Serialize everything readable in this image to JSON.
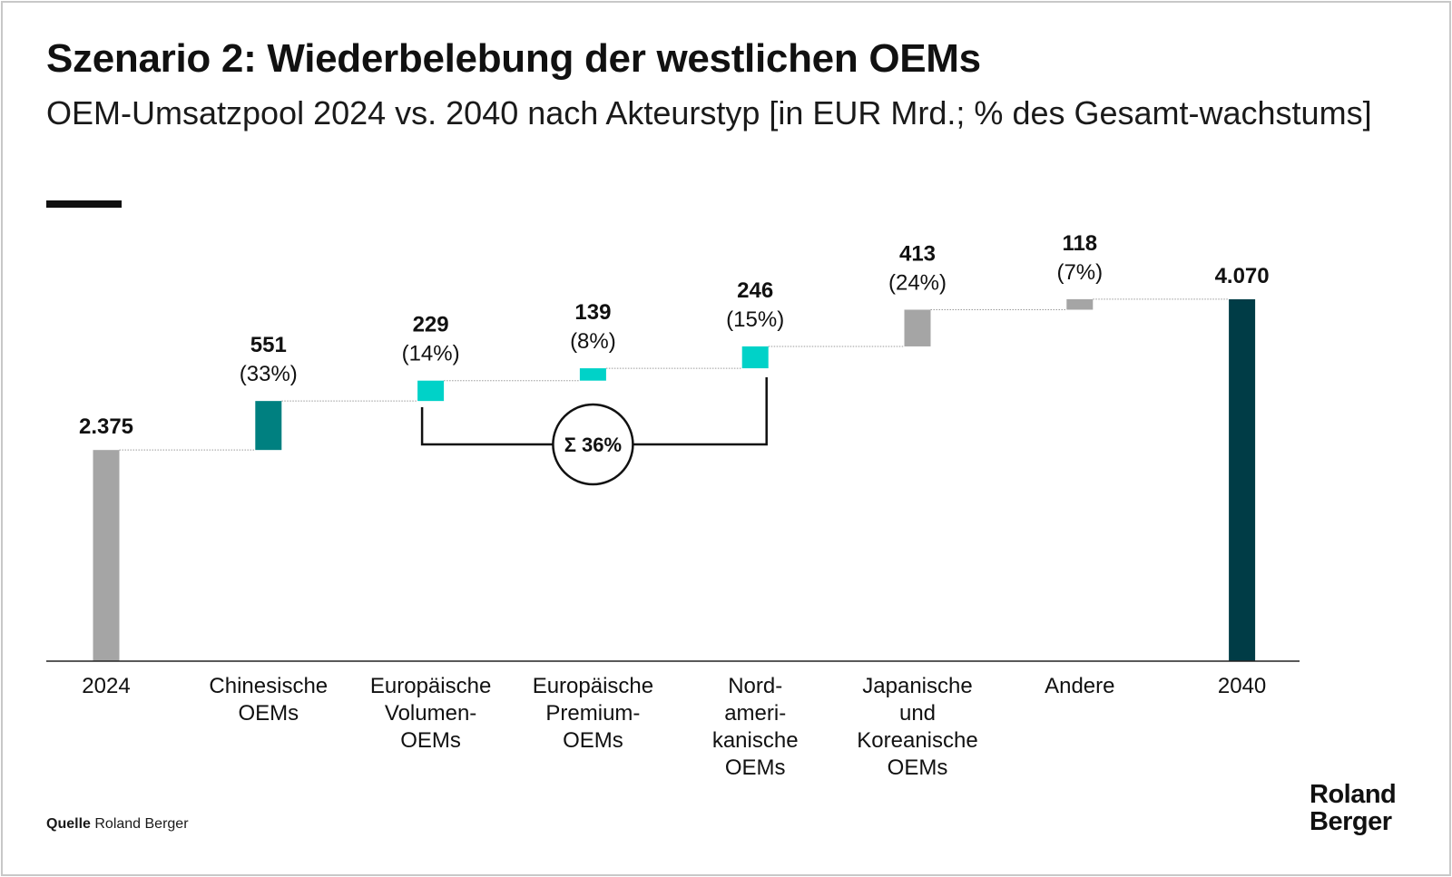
{
  "title": "Szenario 2: Wiederbelebung der westlichen OEMs",
  "subtitle": "OEM-Umsatzpool 2024 vs. 2040 nach Akteurstyp [in EUR Mrd.; % des Gesamt-wachstums]",
  "source": {
    "label": "Quelle",
    "text": "Roland Berger"
  },
  "brand": {
    "line1": "Roland",
    "line2": "Berger"
  },
  "chart_data": {
    "type": "bar",
    "subtype": "waterfall",
    "categories": [
      "2024",
      "Chinesische OEMs",
      "Europäische Volumen-OEMs",
      "Europäische Premium-OEMs",
      "Nord-amerikanische OEMs",
      "Japanische und Koreanische OEMs",
      "Andere",
      "2040"
    ],
    "category_lines": [
      [
        "2024"
      ],
      [
        "Chinesische",
        "OEMs"
      ],
      [
        "Europäische",
        "Volumen-",
        "OEMs"
      ],
      [
        "Europäische",
        "Premium-",
        "OEMs"
      ],
      [
        "Nord-",
        "ameri-",
        "kanische",
        "OEMs"
      ],
      [
        "Japanische",
        "und",
        "Koreanische",
        "OEMs"
      ],
      [
        "Andere"
      ],
      [
        "2040"
      ]
    ],
    "bars": [
      {
        "kind": "total",
        "value": 2375,
        "label": "2.375",
        "pct": "",
        "color": "#a5a5a5"
      },
      {
        "kind": "delta",
        "value": 551,
        "label": "551",
        "pct": "(33%)",
        "color": "#008080"
      },
      {
        "kind": "delta",
        "value": 229,
        "label": "229",
        "pct": "(14%)",
        "color": "#00d2c8"
      },
      {
        "kind": "delta",
        "value": 139,
        "label": "139",
        "pct": "(8%)",
        "color": "#00d2c8"
      },
      {
        "kind": "delta",
        "value": 246,
        "label": "246",
        "pct": "(15%)",
        "color": "#00d2c8"
      },
      {
        "kind": "delta",
        "value": 413,
        "label": "413",
        "pct": "(24%)",
        "color": "#a5a5a5"
      },
      {
        "kind": "delta",
        "value": 118,
        "label": "118",
        "pct": "(7%)",
        "color": "#a5a5a5"
      },
      {
        "kind": "total",
        "value": 4070,
        "label": "4.070",
        "pct": "",
        "color": "#003c46"
      }
    ],
    "bracket": {
      "label": "Σ 36%",
      "from_index": 2,
      "to_index": 4
    },
    "ylim": [
      0,
      4070
    ],
    "xlabel": "",
    "ylabel": ""
  }
}
